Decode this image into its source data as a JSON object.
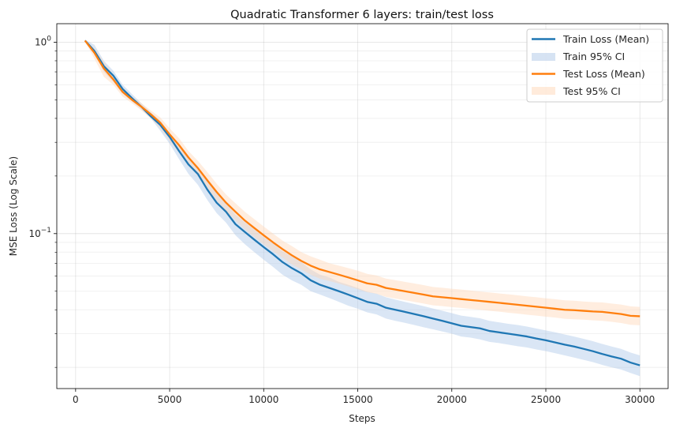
{
  "chart_data": {
    "type": "line",
    "title": "Quadratic Transformer 6 layers: train/test loss",
    "xlabel": "Steps",
    "ylabel": "MSE Loss (Log Scale)",
    "xlim": [
      -1000,
      31500
    ],
    "ylim": [
      0.0155,
      1.25
    ],
    "yscale": "log",
    "grid": true,
    "legend_position": "top-right",
    "x_ticks": [
      0,
      5000,
      10000,
      15000,
      20000,
      25000,
      30000
    ],
    "x_tick_labels": [
      "0",
      "5000",
      "10000",
      "15000",
      "20000",
      "25000",
      "30000"
    ],
    "y_major_ticks": [
      {
        "value": 1.0,
        "base": "10",
        "exp": "0"
      },
      {
        "value": 0.1,
        "base": "10",
        "exp": "−1"
      }
    ],
    "y_minor_ticks": [
      0.02,
      0.03,
      0.04,
      0.05,
      0.06,
      0.07,
      0.08,
      0.09,
      0.2,
      0.3,
      0.4,
      0.5,
      0.6,
      0.7,
      0.8,
      0.9
    ],
    "x": [
      500,
      1000,
      1500,
      2000,
      2500,
      3000,
      3500,
      4000,
      4500,
      5000,
      5500,
      6000,
      6500,
      7000,
      7500,
      8000,
      8500,
      9000,
      9500,
      10000,
      10500,
      11000,
      11500,
      12000,
      12500,
      13000,
      13500,
      14000,
      14500,
      15000,
      15500,
      16000,
      16500,
      17000,
      17500,
      18000,
      18500,
      19000,
      19500,
      20000,
      20500,
      21000,
      21500,
      22000,
      22500,
      23000,
      23500,
      24000,
      24500,
      25000,
      25500,
      26000,
      26500,
      27000,
      27500,
      28000,
      28500,
      29000,
      29500,
      30000
    ],
    "series": [
      {
        "name": "Train Loss (Mean)",
        "ci_name": "Train 95% CI",
        "color": "#1f77b4",
        "ci_color": "#aec7e8",
        "values": [
          1.02,
          0.9,
          0.75,
          0.67,
          0.57,
          0.51,
          0.46,
          0.41,
          0.37,
          0.32,
          0.27,
          0.23,
          0.205,
          0.17,
          0.145,
          0.13,
          0.112,
          0.102,
          0.093,
          0.085,
          0.078,
          0.071,
          0.066,
          0.062,
          0.057,
          0.054,
          0.052,
          0.05,
          0.048,
          0.046,
          0.044,
          0.043,
          0.041,
          0.04,
          0.039,
          0.038,
          0.037,
          0.036,
          0.035,
          0.034,
          0.033,
          0.0325,
          0.032,
          0.031,
          0.0305,
          0.03,
          0.0295,
          0.029,
          0.0283,
          0.0277,
          0.027,
          0.0263,
          0.0257,
          0.025,
          0.0243,
          0.0235,
          0.0228,
          0.0222,
          0.0212,
          0.0205
        ],
        "ci_lower": [
          1.01,
          0.88,
          0.7,
          0.62,
          0.54,
          0.49,
          0.445,
          0.4,
          0.345,
          0.295,
          0.245,
          0.205,
          0.18,
          0.15,
          0.128,
          0.114,
          0.098,
          0.088,
          0.08,
          0.073,
          0.067,
          0.061,
          0.057,
          0.054,
          0.05,
          0.048,
          0.046,
          0.044,
          0.042,
          0.0405,
          0.0388,
          0.0378,
          0.036,
          0.035,
          0.0342,
          0.0333,
          0.0324,
          0.0316,
          0.0308,
          0.03,
          0.029,
          0.0286,
          0.028,
          0.0272,
          0.0268,
          0.0263,
          0.0258,
          0.0254,
          0.0248,
          0.0243,
          0.0237,
          0.0231,
          0.0225,
          0.0219,
          0.0213,
          0.0206,
          0.02,
          0.0195,
          0.0187,
          0.018
        ],
        "ci_upper": [
          1.03,
          0.97,
          0.8,
          0.71,
          0.6,
          0.535,
          0.48,
          0.43,
          0.39,
          0.335,
          0.29,
          0.25,
          0.225,
          0.19,
          0.163,
          0.145,
          0.126,
          0.115,
          0.105,
          0.096,
          0.089,
          0.081,
          0.076,
          0.071,
          0.065,
          0.061,
          0.059,
          0.056,
          0.054,
          0.052,
          0.0497,
          0.0486,
          0.0465,
          0.0452,
          0.044,
          0.0429,
          0.0418,
          0.0406,
          0.0395,
          0.0384,
          0.0373,
          0.0367,
          0.0361,
          0.035,
          0.0344,
          0.0338,
          0.0333,
          0.0327,
          0.0319,
          0.0312,
          0.0305,
          0.0297,
          0.029,
          0.0282,
          0.0274,
          0.0265,
          0.0257,
          0.025,
          0.0239,
          0.0231
        ]
      },
      {
        "name": "Test Loss (Mean)",
        "ci_name": "Test 95% CI",
        "color": "#ff7f0e",
        "ci_color": "#ffd8b8",
        "values": [
          1.02,
          0.88,
          0.73,
          0.64,
          0.55,
          0.5,
          0.46,
          0.42,
          0.38,
          0.33,
          0.29,
          0.25,
          0.22,
          0.19,
          0.165,
          0.145,
          0.13,
          0.117,
          0.107,
          0.098,
          0.09,
          0.083,
          0.077,
          0.072,
          0.068,
          0.065,
          0.063,
          0.061,
          0.059,
          0.057,
          0.055,
          0.054,
          0.052,
          0.051,
          0.05,
          0.049,
          0.048,
          0.047,
          0.0465,
          0.046,
          0.0455,
          0.045,
          0.0445,
          0.044,
          0.0435,
          0.043,
          0.0425,
          0.042,
          0.0415,
          0.041,
          0.0405,
          0.04,
          0.0398,
          0.0395,
          0.0392,
          0.039,
          0.0385,
          0.038,
          0.0372,
          0.037
        ],
        "ci_lower": [
          1.01,
          0.82,
          0.66,
          0.6,
          0.52,
          0.48,
          0.44,
          0.4,
          0.355,
          0.305,
          0.265,
          0.23,
          0.2,
          0.172,
          0.149,
          0.131,
          0.117,
          0.105,
          0.096,
          0.088,
          0.081,
          0.075,
          0.069,
          0.065,
          0.061,
          0.058,
          0.0565,
          0.0548,
          0.053,
          0.0512,
          0.0494,
          0.0485,
          0.0467,
          0.0458,
          0.0449,
          0.044,
          0.0431,
          0.0422,
          0.0418,
          0.0413,
          0.0409,
          0.0404,
          0.04,
          0.0395,
          0.0391,
          0.0386,
          0.0382,
          0.0377,
          0.0373,
          0.0368,
          0.0364,
          0.0359,
          0.0357,
          0.0355,
          0.0352,
          0.035,
          0.0346,
          0.0341,
          0.0334,
          0.0332
        ],
        "ci_upper": [
          1.03,
          0.93,
          0.79,
          0.68,
          0.58,
          0.52,
          0.48,
          0.44,
          0.405,
          0.355,
          0.315,
          0.27,
          0.24,
          0.21,
          0.182,
          0.16,
          0.144,
          0.13,
          0.119,
          0.109,
          0.1,
          0.092,
          0.086,
          0.08,
          0.076,
          0.073,
          0.07,
          0.068,
          0.066,
          0.064,
          0.0616,
          0.0605,
          0.0582,
          0.0571,
          0.056,
          0.0549,
          0.0538,
          0.0526,
          0.0521,
          0.0515,
          0.051,
          0.0504,
          0.0498,
          0.0493,
          0.0487,
          0.0482,
          0.0476,
          0.047,
          0.0465,
          0.0459,
          0.0454,
          0.0448,
          0.0446,
          0.0442,
          0.0439,
          0.0437,
          0.0431,
          0.0426,
          0.0417,
          0.0414
        ]
      }
    ]
  }
}
